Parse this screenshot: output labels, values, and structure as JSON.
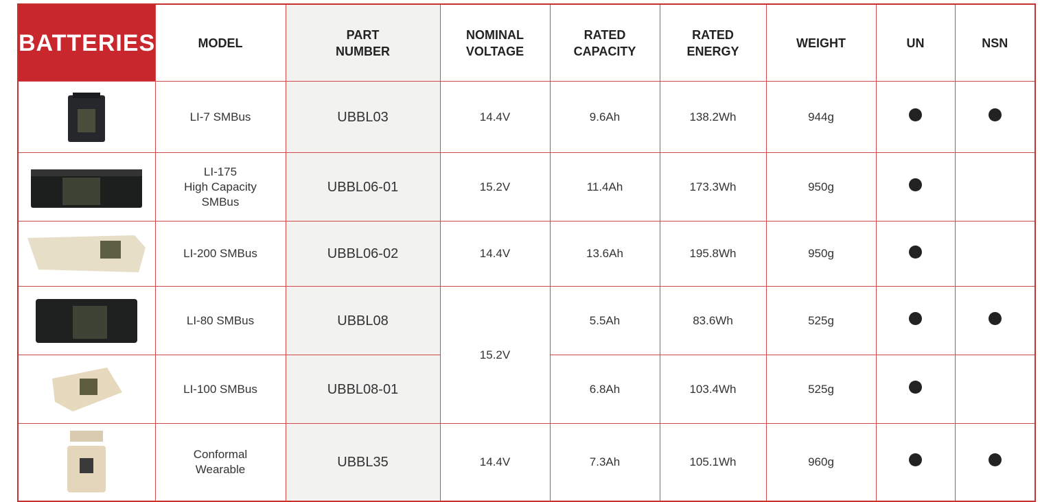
{
  "header": {
    "title": "BATTERIES",
    "columns": [
      "MODEL",
      "PART\nNUMBER",
      "NOMINAL\nVOLTAGE",
      "RATED\nCAPACITY",
      "RATED\nENERGY",
      "WEIGHT",
      "UN",
      "NSN"
    ]
  },
  "rows": [
    {
      "model": "LI-7 SMBus",
      "part_number": "UBBL03",
      "voltage": "14.4V",
      "capacity": "9.6Ah",
      "energy": "138.2Wh",
      "weight": "944g",
      "un": true,
      "nsn": true
    },
    {
      "model": "LI-175\nHigh Capacity\nSMBus",
      "part_number": "UBBL06-01",
      "voltage": "15.2V",
      "capacity": "11.4Ah",
      "energy": "173.3Wh",
      "weight": "950g",
      "un": true,
      "nsn": false
    },
    {
      "model": "LI-200 SMBus",
      "part_number": "UBBL06-02",
      "voltage": "14.4V",
      "capacity": "13.6Ah",
      "energy": "195.8Wh",
      "weight": "950g",
      "un": true,
      "nsn": false
    },
    {
      "model": "LI-80 SMBus",
      "part_number": "UBBL08",
      "voltage": "15.2V",
      "capacity": "5.5Ah",
      "energy": "83.6Wh",
      "weight": "525g",
      "un": true,
      "nsn": true
    },
    {
      "model": "LI-100 SMBus",
      "part_number": "UBBL08-01",
      "capacity": "6.8Ah",
      "energy": "103.4Wh",
      "weight": "525g",
      "un": true,
      "nsn": false
    },
    {
      "model": "Conformal\nWearable",
      "part_number": "UBBL35",
      "voltage": "14.4V",
      "capacity": "7.3Ah",
      "energy": "105.1Wh",
      "weight": "960g",
      "un": true,
      "nsn": true
    }
  ]
}
